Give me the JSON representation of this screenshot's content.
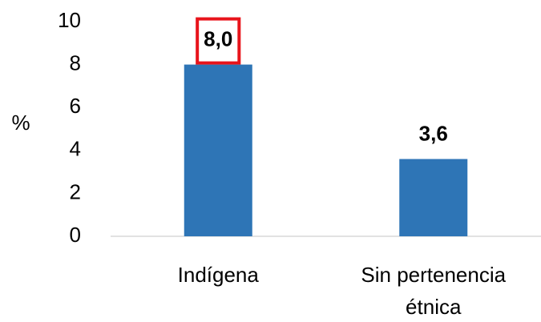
{
  "chart_data": {
    "type": "bar",
    "y_label": "%",
    "categories": [
      "Indígena",
      "Sin pertenencia étnica"
    ],
    "values": [
      8.0,
      3.6
    ],
    "value_labels": [
      "8,0",
      "3,6"
    ],
    "color": "#2e75b6",
    "ylim": [
      0,
      10
    ],
    "yticks": [
      0,
      2,
      4,
      6,
      8,
      10
    ],
    "grid": false
  }
}
